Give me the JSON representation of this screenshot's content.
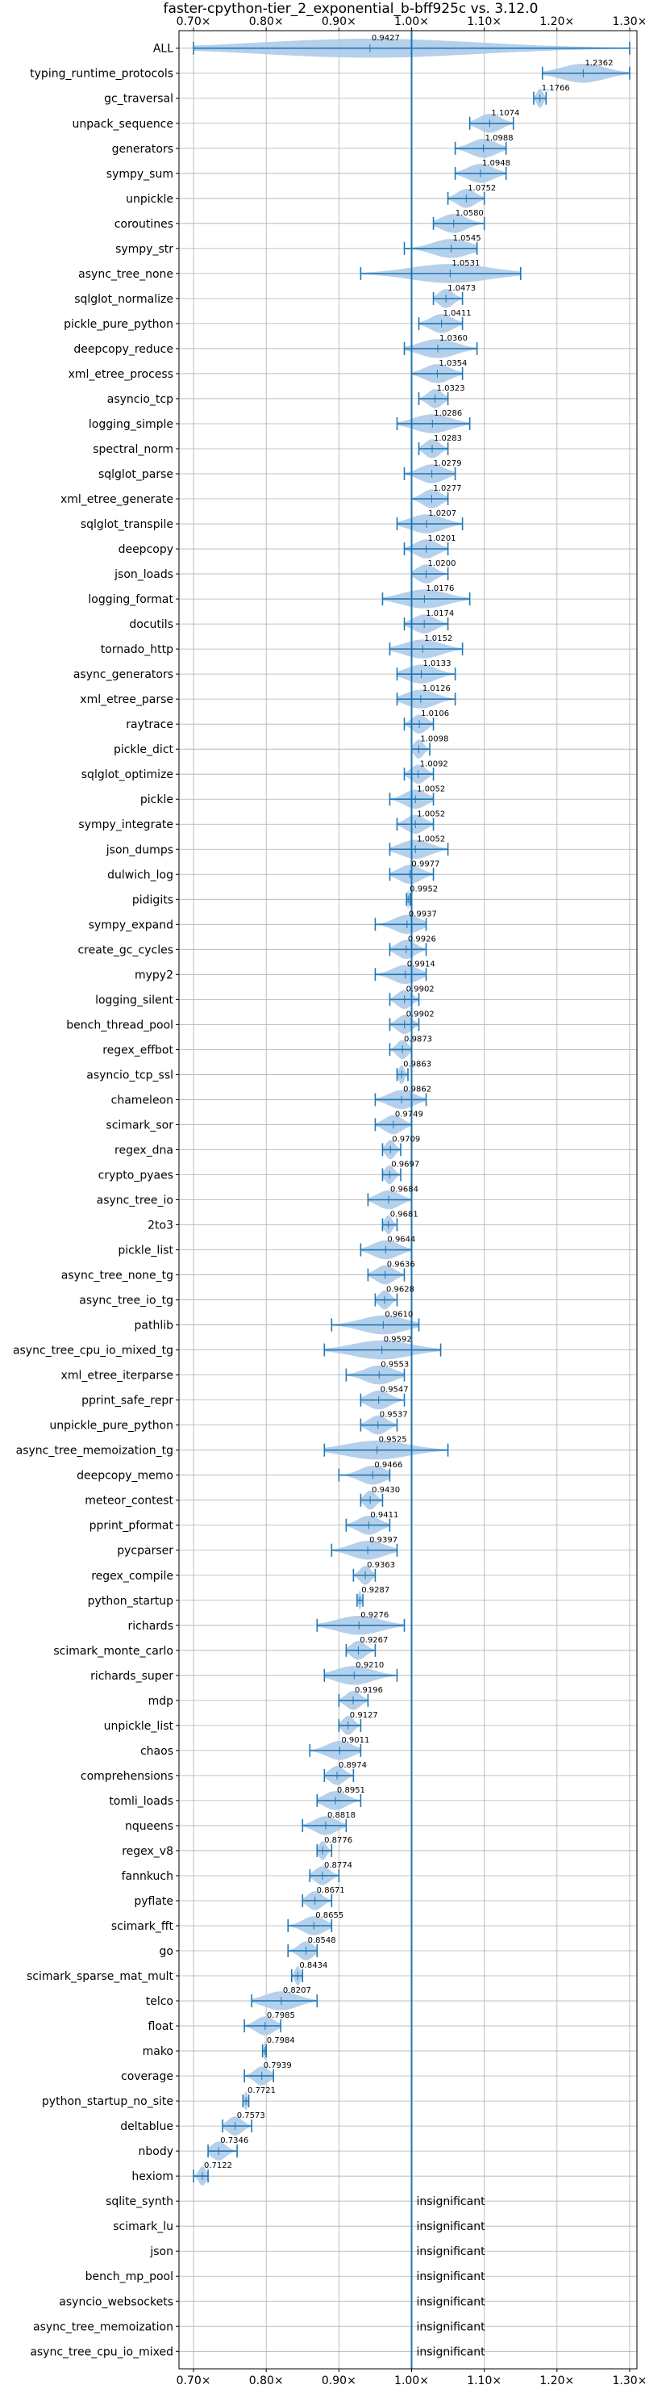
{
  "chart_data": {
    "type": "violin",
    "title": "faster-cpython-tier_2_exponential_b-bff925c vs. 3.12.0",
    "xlim": [
      0.68,
      1.31
    ],
    "x_ticks": [
      0.7,
      0.8,
      0.9,
      1.0,
      1.1,
      1.2,
      1.3
    ],
    "x_tick_labels": [
      "0.70×",
      "0.80×",
      "0.90×",
      "1.00×",
      "1.10×",
      "1.20×",
      "1.30×"
    ],
    "reference_line": 1.0,
    "grid": true,
    "colors": {
      "violin": "#a8c8e8",
      "line": "#1f77b4"
    },
    "insignificant_text": "insignificant",
    "benchmarks": [
      {
        "name": "ALL",
        "mean": 0.9427,
        "min": 0.7,
        "max": 1.3,
        "lo": 0.7,
        "hi": 1.3,
        "median": 0.9427
      },
      {
        "name": "typing_runtime_protocols",
        "mean": 1.2362,
        "min": 1.18,
        "max": 1.3
      },
      {
        "name": "gc_traversal",
        "mean": 1.1766,
        "min": 1.168,
        "max": 1.185
      },
      {
        "name": "unpack_sequence",
        "mean": 1.1074,
        "min": 1.08,
        "max": 1.14
      },
      {
        "name": "generators",
        "mean": 1.0988,
        "min": 1.06,
        "max": 1.13
      },
      {
        "name": "sympy_sum",
        "mean": 1.0948,
        "min": 1.06,
        "max": 1.13
      },
      {
        "name": "unpickle",
        "mean": 1.0752,
        "min": 1.05,
        "max": 1.1
      },
      {
        "name": "coroutines",
        "mean": 1.058,
        "min": 1.03,
        "max": 1.1
      },
      {
        "name": "sympy_str",
        "mean": 1.0545,
        "min": 0.99,
        "max": 1.09
      },
      {
        "name": "async_tree_none",
        "mean": 1.0531,
        "min": 0.93,
        "max": 1.15
      },
      {
        "name": "sqlglot_normalize",
        "mean": 1.0473,
        "min": 1.03,
        "max": 1.07
      },
      {
        "name": "pickle_pure_python",
        "mean": 1.0411,
        "min": 1.01,
        "max": 1.07
      },
      {
        "name": "deepcopy_reduce",
        "mean": 1.036,
        "min": 0.99,
        "max": 1.09
      },
      {
        "name": "xml_etree_process",
        "mean": 1.0354,
        "min": 1.0,
        "max": 1.07
      },
      {
        "name": "asyncio_tcp",
        "mean": 1.0323,
        "min": 1.01,
        "max": 1.05
      },
      {
        "name": "logging_simple",
        "mean": 1.0286,
        "min": 0.98,
        "max": 1.08
      },
      {
        "name": "spectral_norm",
        "mean": 1.0283,
        "min": 1.01,
        "max": 1.05
      },
      {
        "name": "sqlglot_parse",
        "mean": 1.0279,
        "min": 0.99,
        "max": 1.06
      },
      {
        "name": "xml_etree_generate",
        "mean": 1.0277,
        "min": 1.0,
        "max": 1.05
      },
      {
        "name": "sqlglot_transpile",
        "mean": 1.0207,
        "min": 0.98,
        "max": 1.07
      },
      {
        "name": "deepcopy",
        "mean": 1.0201,
        "min": 0.99,
        "max": 1.05
      },
      {
        "name": "json_loads",
        "mean": 1.02,
        "min": 1.0,
        "max": 1.05
      },
      {
        "name": "logging_format",
        "mean": 1.0176,
        "min": 0.96,
        "max": 1.08
      },
      {
        "name": "docutils",
        "mean": 1.0174,
        "min": 0.99,
        "max": 1.05
      },
      {
        "name": "tornado_http",
        "mean": 1.0152,
        "min": 0.97,
        "max": 1.07
      },
      {
        "name": "async_generators",
        "mean": 1.0133,
        "min": 0.98,
        "max": 1.06
      },
      {
        "name": "xml_etree_parse",
        "mean": 1.0126,
        "min": 0.98,
        "max": 1.06
      },
      {
        "name": "raytrace",
        "mean": 1.0106,
        "min": 0.99,
        "max": 1.03
      },
      {
        "name": "pickle_dict",
        "mean": 1.0098,
        "min": 1.0,
        "max": 1.025
      },
      {
        "name": "sqlglot_optimize",
        "mean": 1.0092,
        "min": 0.99,
        "max": 1.03
      },
      {
        "name": "pickle",
        "mean": 1.0052,
        "min": 0.97,
        "max": 1.03
      },
      {
        "name": "sympy_integrate",
        "mean": 1.0052,
        "min": 0.98,
        "max": 1.03
      },
      {
        "name": "json_dumps",
        "mean": 1.0052,
        "min": 0.97,
        "max": 1.05
      },
      {
        "name": "dulwich_log",
        "mean": 0.9977,
        "min": 0.97,
        "max": 1.03
      },
      {
        "name": "pidigits",
        "mean": 0.9952,
        "min": 0.993,
        "max": 0.998
      },
      {
        "name": "sympy_expand",
        "mean": 0.9937,
        "min": 0.95,
        "max": 1.02
      },
      {
        "name": "create_gc_cycles",
        "mean": 0.9926,
        "min": 0.97,
        "max": 1.02
      },
      {
        "name": "mypy2",
        "mean": 0.9914,
        "min": 0.95,
        "max": 1.02
      },
      {
        "name": "logging_silent",
        "mean": 0.9902,
        "min": 0.97,
        "max": 1.01
      },
      {
        "name": "bench_thread_pool",
        "mean": 0.9902,
        "min": 0.97,
        "max": 1.01
      },
      {
        "name": "regex_effbot",
        "mean": 0.9873,
        "min": 0.97,
        "max": 1.0
      },
      {
        "name": "asyncio_tcp_ssl",
        "mean": 0.9863,
        "min": 0.98,
        "max": 0.995
      },
      {
        "name": "chameleon",
        "mean": 0.9862,
        "min": 0.95,
        "max": 1.02
      },
      {
        "name": "scimark_sor",
        "mean": 0.9749,
        "min": 0.95,
        "max": 1.0
      },
      {
        "name": "regex_dna",
        "mean": 0.9709,
        "min": 0.96,
        "max": 0.985
      },
      {
        "name": "crypto_pyaes",
        "mean": 0.9697,
        "min": 0.96,
        "max": 0.985
      },
      {
        "name": "async_tree_io",
        "mean": 0.9684,
        "min": 0.94,
        "max": 1.0
      },
      {
        "name": "2to3",
        "mean": 0.9681,
        "min": 0.96,
        "max": 0.98
      },
      {
        "name": "pickle_list",
        "mean": 0.9644,
        "min": 0.93,
        "max": 1.0
      },
      {
        "name": "async_tree_none_tg",
        "mean": 0.9636,
        "min": 0.94,
        "max": 0.99
      },
      {
        "name": "async_tree_io_tg",
        "mean": 0.9628,
        "min": 0.95,
        "max": 0.98
      },
      {
        "name": "pathlib",
        "mean": 0.961,
        "min": 0.89,
        "max": 1.01
      },
      {
        "name": "async_tree_cpu_io_mixed_tg",
        "mean": 0.9592,
        "min": 0.88,
        "max": 1.04
      },
      {
        "name": "xml_etree_iterparse",
        "mean": 0.9553,
        "min": 0.91,
        "max": 0.99
      },
      {
        "name": "pprint_safe_repr",
        "mean": 0.9547,
        "min": 0.93,
        "max": 0.99
      },
      {
        "name": "unpickle_pure_python",
        "mean": 0.9537,
        "min": 0.93,
        "max": 0.98
      },
      {
        "name": "async_tree_memoization_tg",
        "mean": 0.9525,
        "min": 0.88,
        "max": 1.05
      },
      {
        "name": "deepcopy_memo",
        "mean": 0.9466,
        "min": 0.9,
        "max": 0.97
      },
      {
        "name": "meteor_contest",
        "mean": 0.943,
        "min": 0.93,
        "max": 0.96
      },
      {
        "name": "pprint_pformat",
        "mean": 0.9411,
        "min": 0.91,
        "max": 0.97
      },
      {
        "name": "pycparser",
        "mean": 0.9397,
        "min": 0.89,
        "max": 0.98
      },
      {
        "name": "regex_compile",
        "mean": 0.9363,
        "min": 0.92,
        "max": 0.95
      },
      {
        "name": "python_startup",
        "mean": 0.9287,
        "min": 0.925,
        "max": 0.933
      },
      {
        "name": "richards",
        "mean": 0.9276,
        "min": 0.87,
        "max": 0.99
      },
      {
        "name": "scimark_monte_carlo",
        "mean": 0.9267,
        "min": 0.91,
        "max": 0.95
      },
      {
        "name": "richards_super",
        "mean": 0.921,
        "min": 0.88,
        "max": 0.98
      },
      {
        "name": "mdp",
        "mean": 0.9196,
        "min": 0.9,
        "max": 0.94
      },
      {
        "name": "unpickle_list",
        "mean": 0.9127,
        "min": 0.9,
        "max": 0.93
      },
      {
        "name": "chaos",
        "mean": 0.9011,
        "min": 0.86,
        "max": 0.93
      },
      {
        "name": "comprehensions",
        "mean": 0.8974,
        "min": 0.88,
        "max": 0.92
      },
      {
        "name": "tomli_loads",
        "mean": 0.8951,
        "min": 0.87,
        "max": 0.93
      },
      {
        "name": "nqueens",
        "mean": 0.8818,
        "min": 0.85,
        "max": 0.91
      },
      {
        "name": "regex_v8",
        "mean": 0.8776,
        "min": 0.87,
        "max": 0.89
      },
      {
        "name": "fannkuch",
        "mean": 0.8774,
        "min": 0.86,
        "max": 0.9
      },
      {
        "name": "pyflate",
        "mean": 0.8671,
        "min": 0.85,
        "max": 0.89
      },
      {
        "name": "scimark_fft",
        "mean": 0.8655,
        "min": 0.83,
        "max": 0.89
      },
      {
        "name": "go",
        "mean": 0.8548,
        "min": 0.83,
        "max": 0.87
      },
      {
        "name": "scimark_sparse_mat_mult",
        "mean": 0.8434,
        "min": 0.835,
        "max": 0.85
      },
      {
        "name": "telco",
        "mean": 0.8207,
        "min": 0.78,
        "max": 0.87
      },
      {
        "name": "float",
        "mean": 0.7985,
        "min": 0.77,
        "max": 0.82
      },
      {
        "name": "mako",
        "mean": 0.7984,
        "min": 0.795,
        "max": 0.8
      },
      {
        "name": "coverage",
        "mean": 0.7939,
        "min": 0.77,
        "max": 0.81
      },
      {
        "name": "python_startup_no_site",
        "mean": 0.7721,
        "min": 0.768,
        "max": 0.776
      },
      {
        "name": "deltablue",
        "mean": 0.7573,
        "min": 0.74,
        "max": 0.78
      },
      {
        "name": "nbody",
        "mean": 0.7346,
        "min": 0.72,
        "max": 0.76
      },
      {
        "name": "hexiom",
        "mean": 0.7122,
        "min": 0.7,
        "max": 0.72
      },
      {
        "name": "sqlite_synth",
        "insignificant": true
      },
      {
        "name": "scimark_lu",
        "insignificant": true
      },
      {
        "name": "json",
        "insignificant": true
      },
      {
        "name": "bench_mp_pool",
        "insignificant": true
      },
      {
        "name": "asyncio_websockets",
        "insignificant": true
      },
      {
        "name": "async_tree_memoization",
        "insignificant": true
      },
      {
        "name": "async_tree_cpu_io_mixed",
        "insignificant": true
      }
    ]
  }
}
